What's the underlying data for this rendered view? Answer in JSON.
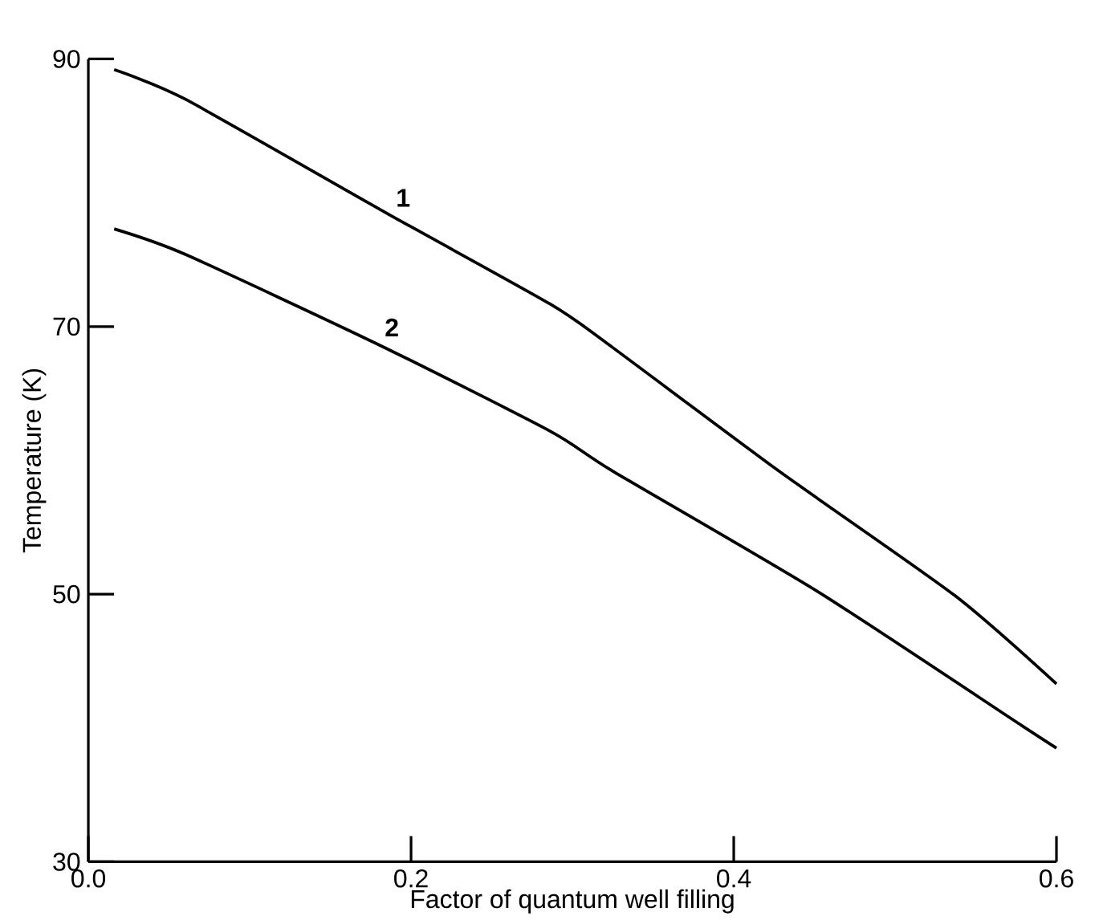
{
  "chart_data": {
    "type": "line",
    "xlabel": "Factor of quantum well filling",
    "ylabel": "Temperature (K)",
    "xlim": [
      0.0,
      0.6
    ],
    "ylim": [
      30,
      90
    ],
    "xticks": [
      {
        "value": 0,
        "label": "0.0"
      },
      0.2,
      0.4,
      0.6
    ],
    "yticks": [
      30,
      50,
      70,
      90
    ],
    "series": [
      {
        "name": "1",
        "color": "#000000",
        "x": [
          0.016,
          0.06,
          0.186,
          0.286,
          0.322,
          0.428,
          0.537,
          0.6
        ],
        "values": [
          89.2,
          87.0,
          78.4,
          71.7,
          68.7,
          59.2,
          49.9,
          43.3
        ]
      },
      {
        "name": "2",
        "color": "#000000",
        "x": [
          0.016,
          0.06,
          0.179,
          0.286,
          0.325,
          0.452,
          0.577,
          0.6
        ],
        "values": [
          77.3,
          75.4,
          68.7,
          62.2,
          59.2,
          50.2,
          40.3,
          38.5
        ]
      }
    ],
    "grid": false,
    "marker": "none",
    "line_style": "solid"
  }
}
